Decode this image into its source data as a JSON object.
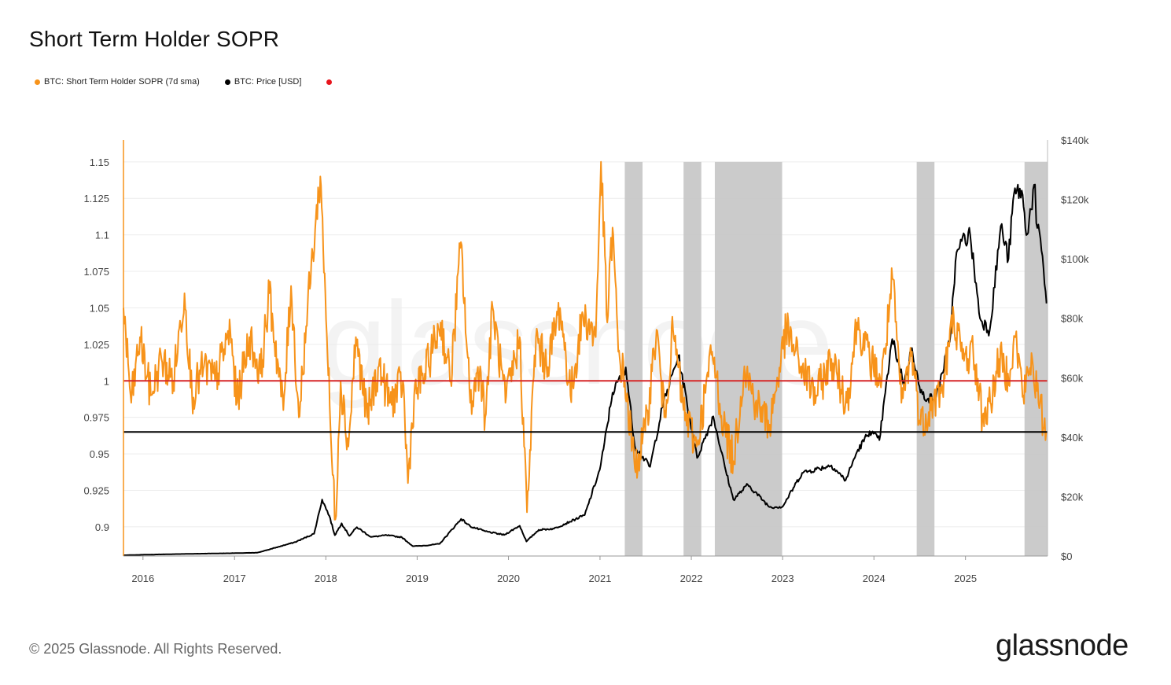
{
  "title": "Short Term Holder SOPR",
  "legend": {
    "sopr": "BTC: Short Term Holder SOPR (7d sma)",
    "price": "BTC: Price [USD]"
  },
  "footer": {
    "copyright": "© 2025 Glassnode. All Rights Reserved.",
    "brand": "glassnode"
  },
  "watermark": "glassnode",
  "colors": {
    "sopr": "#f7931a",
    "price": "#000000",
    "sopr_baseline": "#d62728",
    "price_level_line": "#000000",
    "shade": "#c8c8c8",
    "legend_extra_dot": "#e8141c"
  },
  "chart_data": {
    "type": "line",
    "title": "Short Term Holder SOPR",
    "x_ticks": [
      "2016",
      "2017",
      "2018",
      "2019",
      "2020",
      "2021",
      "2022",
      "2023",
      "2024",
      "2025"
    ],
    "y_left_ticks": [
      "0.9",
      "0.925",
      "0.95",
      "0.975",
      "1",
      "1.025",
      "1.05",
      "1.075",
      "1.1",
      "1.125",
      "1.15"
    ],
    "y_right_ticks": [
      "$0",
      "$20k",
      "$40k",
      "$60k",
      "$80k",
      "$100k",
      "$120k",
      "$140k"
    ],
    "ylim_left": [
      0.88,
      1.165
    ],
    "ylim_right": [
      0,
      140000
    ],
    "xlim": [
      "2015-10-15",
      "2025-11-25"
    ],
    "reference_lines": [
      {
        "axis": "left",
        "value": 1.0,
        "color": "#d62728"
      },
      {
        "axis": "left",
        "value": 0.965,
        "color": "#000000"
      }
    ],
    "shaded_periods": [
      [
        "2021-04-10",
        "2021-06-20"
      ],
      [
        "2021-12-01",
        "2022-02-10"
      ],
      [
        "2022-04-05",
        "2022-12-30"
      ],
      [
        "2024-06-20",
        "2024-08-30"
      ],
      [
        "2025-08-25",
        "2025-11-25"
      ]
    ],
    "series": [
      {
        "name": "BTC: Short Term Holder SOPR (7d sma)",
        "axis": "left",
        "points": [
          [
            "2015-10-15",
            1.05
          ],
          [
            "2015-11-15",
            0.985
          ],
          [
            "2015-12-20",
            1.03
          ],
          [
            "2016-02-01",
            0.99
          ],
          [
            "2016-03-15",
            1.015
          ],
          [
            "2016-05-01",
            1.0
          ],
          [
            "2016-06-15",
            1.06
          ],
          [
            "2016-07-15",
            0.99
          ],
          [
            "2016-09-01",
            1.01
          ],
          [
            "2016-10-15",
            1.0
          ],
          [
            "2016-12-15",
            1.035
          ],
          [
            "2017-01-10",
            0.985
          ],
          [
            "2017-03-01",
            1.03
          ],
          [
            "2017-04-15",
            1.005
          ],
          [
            "2017-05-20",
            1.06
          ],
          [
            "2017-07-15",
            0.98
          ],
          [
            "2017-08-15",
            1.065
          ],
          [
            "2017-09-15",
            0.975
          ],
          [
            "2017-10-20",
            1.05
          ],
          [
            "2017-12-10",
            1.14
          ],
          [
            "2017-12-30",
            1.06
          ],
          [
            "2018-01-25",
            0.945
          ],
          [
            "2018-02-08",
            0.905
          ],
          [
            "2018-03-01",
            1.0
          ],
          [
            "2018-04-01",
            0.955
          ],
          [
            "2018-05-01",
            1.03
          ],
          [
            "2018-06-15",
            0.975
          ],
          [
            "2018-08-01",
            1.01
          ],
          [
            "2018-09-15",
            0.985
          ],
          [
            "2018-11-05",
            1.0
          ],
          [
            "2018-11-25",
            0.93
          ],
          [
            "2018-12-20",
            0.99
          ],
          [
            "2019-02-01",
            1.005
          ],
          [
            "2019-04-05",
            1.04
          ],
          [
            "2019-05-15",
            1.0
          ],
          [
            "2019-06-25",
            1.095
          ],
          [
            "2019-08-01",
            0.985
          ],
          [
            "2019-09-10",
            1.01
          ],
          [
            "2019-09-30",
            0.975
          ],
          [
            "2019-10-30",
            1.05
          ],
          [
            "2019-12-20",
            0.985
          ],
          [
            "2020-02-15",
            1.03
          ],
          [
            "2020-03-15",
            0.91
          ],
          [
            "2020-04-20",
            1.03
          ],
          [
            "2020-06-01",
            1.01
          ],
          [
            "2020-07-25",
            1.05
          ],
          [
            "2020-09-05",
            0.99
          ],
          [
            "2020-10-25",
            1.045
          ],
          [
            "2020-12-15",
            1.03
          ],
          [
            "2021-01-05",
            1.15
          ],
          [
            "2021-01-30",
            1.04
          ],
          [
            "2021-02-20",
            1.105
          ],
          [
            "2021-03-15",
            1.02
          ],
          [
            "2021-04-10",
            1.0
          ],
          [
            "2021-05-20",
            0.94
          ],
          [
            "2021-07-01",
            0.965
          ],
          [
            "2021-08-15",
            1.035
          ],
          [
            "2021-09-15",
            0.975
          ],
          [
            "2021-10-20",
            1.035
          ],
          [
            "2021-12-01",
            0.98
          ],
          [
            "2022-01-22",
            0.955
          ],
          [
            "2022-03-25",
            1.02
          ],
          [
            "2022-05-10",
            0.97
          ],
          [
            "2022-06-18",
            0.945
          ],
          [
            "2022-08-01",
            1.01
          ],
          [
            "2022-09-15",
            0.985
          ],
          [
            "2022-11-10",
            0.97
          ],
          [
            "2023-01-15",
            1.035
          ],
          [
            "2023-03-15",
            1.01
          ],
          [
            "2023-05-15",
            0.99
          ],
          [
            "2023-07-15",
            1.015
          ],
          [
            "2023-09-15",
            0.985
          ],
          [
            "2023-10-25",
            1.04
          ],
          [
            "2023-12-15",
            1.015
          ],
          [
            "2024-02-01",
            1.0
          ],
          [
            "2024-03-15",
            1.07
          ],
          [
            "2024-04-20",
            0.985
          ],
          [
            "2024-06-01",
            1.02
          ],
          [
            "2024-07-05",
            0.97
          ],
          [
            "2024-08-25",
            0.985
          ],
          [
            "2024-10-01",
            0.995
          ],
          [
            "2024-11-15",
            1.045
          ],
          [
            "2024-12-20",
            1.015
          ],
          [
            "2025-02-01",
            1.02
          ],
          [
            "2025-03-10",
            0.975
          ],
          [
            "2025-04-10",
            0.985
          ],
          [
            "2025-05-15",
            1.015
          ],
          [
            "2025-06-20",
            1.005
          ],
          [
            "2025-07-20",
            1.03
          ],
          [
            "2025-08-20",
            0.99
          ],
          [
            "2025-09-25",
            1.015
          ],
          [
            "2025-10-20",
            0.985
          ],
          [
            "2025-11-20",
            0.965
          ]
        ]
      },
      {
        "name": "BTC: Price [USD]",
        "axis": "right",
        "points": [
          [
            "2015-10-15",
            250
          ],
          [
            "2016-01-01",
            430
          ],
          [
            "2016-06-15",
            700
          ],
          [
            "2016-12-31",
            960
          ],
          [
            "2017-04-01",
            1100
          ],
          [
            "2017-06-01",
            2500
          ],
          [
            "2017-09-01",
            4700
          ],
          [
            "2017-11-15",
            7500
          ],
          [
            "2017-12-17",
            19000
          ],
          [
            "2018-01-15",
            13500
          ],
          [
            "2018-02-06",
            7000
          ],
          [
            "2018-03-05",
            11000
          ],
          [
            "2018-04-05",
            6800
          ],
          [
            "2018-05-05",
            9700
          ],
          [
            "2018-07-01",
            6400
          ],
          [
            "2018-09-01",
            7000
          ],
          [
            "2018-11-01",
            6300
          ],
          [
            "2018-12-15",
            3300
          ],
          [
            "2019-02-01",
            3500
          ],
          [
            "2019-04-01",
            4100
          ],
          [
            "2019-06-26",
            12500
          ],
          [
            "2019-08-01",
            10000
          ],
          [
            "2019-10-01",
            8300
          ],
          [
            "2019-12-15",
            7100
          ],
          [
            "2020-02-15",
            10200
          ],
          [
            "2020-03-13",
            4900
          ],
          [
            "2020-05-01",
            8800
          ],
          [
            "2020-07-01",
            9200
          ],
          [
            "2020-09-01",
            11500
          ],
          [
            "2020-11-01",
            13800
          ],
          [
            "2020-12-31",
            29000
          ],
          [
            "2021-01-15",
            36000
          ],
          [
            "2021-02-20",
            55000
          ],
          [
            "2021-04-14",
            63500
          ],
          [
            "2021-05-20",
            37000
          ],
          [
            "2021-07-20",
            30000
          ],
          [
            "2021-09-07",
            50000
          ],
          [
            "2021-11-10",
            67500
          ],
          [
            "2022-01-24",
            33000
          ],
          [
            "2022-03-30",
            47000
          ],
          [
            "2022-05-15",
            30000
          ],
          [
            "2022-06-18",
            19000
          ],
          [
            "2022-08-15",
            24000
          ],
          [
            "2022-11-10",
            16500
          ],
          [
            "2023-01-01",
            16600
          ],
          [
            "2023-03-20",
            28000
          ],
          [
            "2023-07-15",
            30500
          ],
          [
            "2023-09-10",
            25500
          ],
          [
            "2023-10-25",
            35000
          ],
          [
            "2023-12-15",
            42000
          ],
          [
            "2024-01-23",
            39000
          ],
          [
            "2024-03-14",
            73000
          ],
          [
            "2024-05-01",
            58000
          ],
          [
            "2024-06-01",
            70000
          ],
          [
            "2024-07-05",
            55000
          ],
          [
            "2024-08-05",
            53000
          ],
          [
            "2024-09-06",
            53500
          ],
          [
            "2024-10-30",
            72000
          ],
          [
            "2024-11-22",
            99000
          ],
          [
            "2024-12-17",
            106000
          ],
          [
            "2025-01-20",
            108000
          ],
          [
            "2025-02-28",
            80000
          ],
          [
            "2025-04-08",
            76000
          ],
          [
            "2025-05-22",
            111000
          ],
          [
            "2025-06-22",
            100000
          ],
          [
            "2025-07-14",
            122000
          ],
          [
            "2025-08-14",
            123000
          ],
          [
            "2025-09-01",
            108000
          ],
          [
            "2025-10-06",
            125000
          ],
          [
            "2025-10-11",
            112000
          ],
          [
            "2025-11-05",
            101000
          ],
          [
            "2025-11-21",
            85000
          ]
        ]
      }
    ]
  }
}
